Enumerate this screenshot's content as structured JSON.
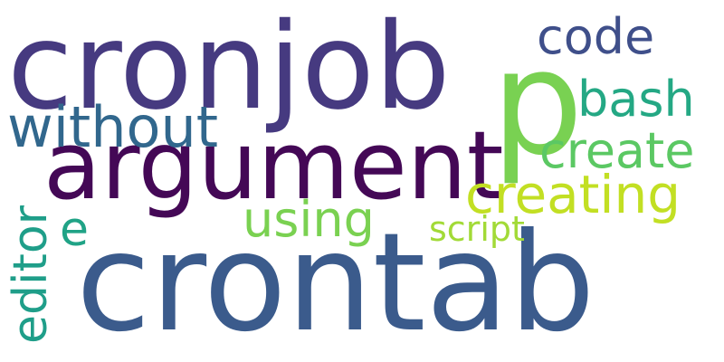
{
  "words": [
    {
      "id": "crontab",
      "text": "crontab",
      "color": "#3b5b8c"
    },
    {
      "id": "cronjob",
      "text": "cronjob",
      "color": "#463a80"
    },
    {
      "id": "argument",
      "text": "argument",
      "color": "#440856"
    },
    {
      "id": "p",
      "text": "p",
      "color": "#79d152"
    },
    {
      "id": "code",
      "text": "code",
      "color": "#3f4f8a"
    },
    {
      "id": "bash",
      "text": "bash",
      "color": "#24a884"
    },
    {
      "id": "without",
      "text": "without",
      "color": "#31678d"
    },
    {
      "id": "create",
      "text": "create",
      "color": "#5bc863"
    },
    {
      "id": "creating",
      "text": "creating",
      "color": "#c2df23"
    },
    {
      "id": "using",
      "text": "using",
      "color": "#7ad151"
    },
    {
      "id": "script",
      "text": "script",
      "color": "#a2da37"
    },
    {
      "id": "editor",
      "text": "editor",
      "color": "#1f9e89"
    },
    {
      "id": "e",
      "text": "e",
      "color": "#20a386"
    }
  ]
}
